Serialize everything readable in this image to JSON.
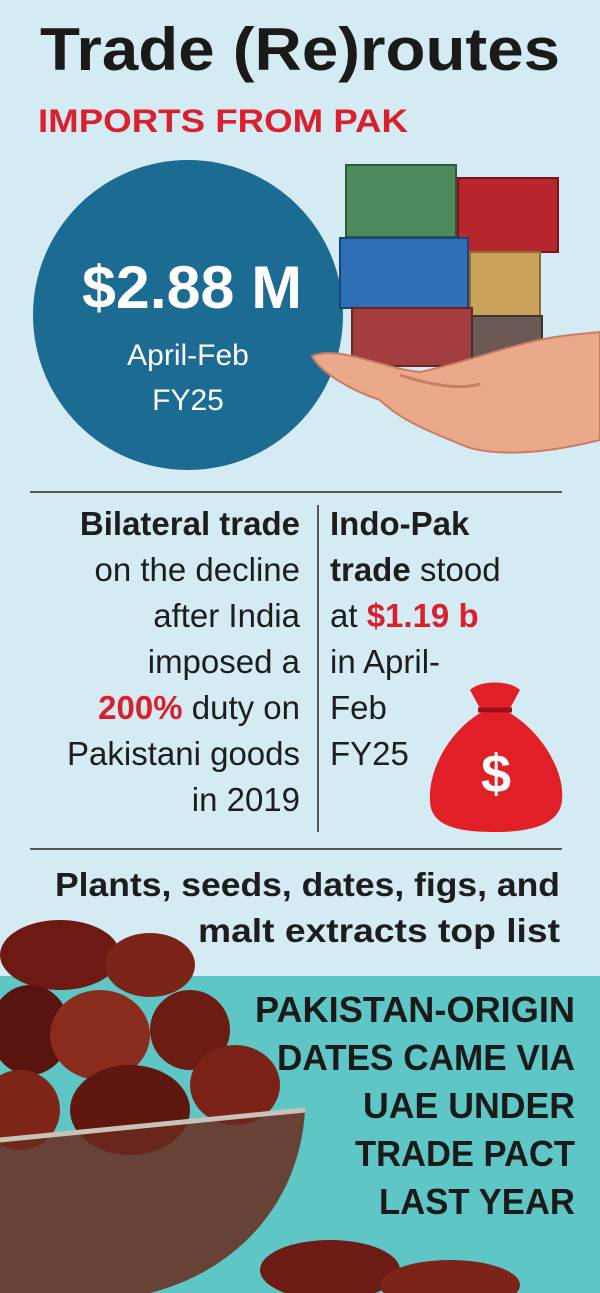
{
  "header": {
    "title": "Trade (Re)routes",
    "subtitle": "IMPORTS FROM PAK"
  },
  "highlight": {
    "value": "$2.88 M",
    "period": [
      "April-Feb",
      "FY25"
    ]
  },
  "left_column": {
    "lines": [
      [
        "Bilateral trade"
      ],
      [
        "on the decline"
      ],
      [
        "after India"
      ],
      [
        "imposed a"
      ],
      [
        "200%",
        " duty on"
      ],
      [
        "Pakistani goods"
      ],
      [
        "in 2019"
      ]
    ]
  },
  "right_column": {
    "lines": [
      [
        "Indo-Pak"
      ],
      [
        "trade",
        " stood"
      ],
      [
        "at ",
        "$1.19 b"
      ],
      [
        "in April-"
      ],
      [
        "Feb"
      ],
      [
        "FY25"
      ]
    ]
  },
  "money_icon": "$",
  "list_heading": [
    "Plants, seeds, dates, figs, and",
    "malt extracts top list"
  ],
  "note": [
    "PAKISTAN-ORIGIN",
    "DATES CAME VIA",
    "UAE UNDER",
    "TRADE PACT",
    "LAST YEAR"
  ]
}
